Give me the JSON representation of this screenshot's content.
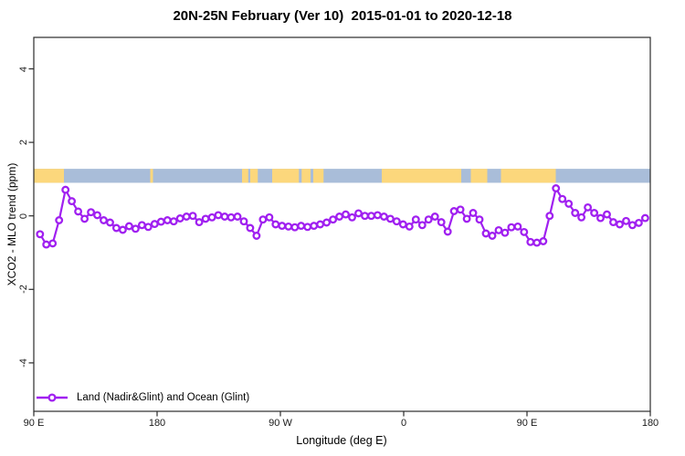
{
  "chart_data": {
    "type": "line",
    "title": "20N-25N February (Ver 10)  2015-01-01 to 2020-12-18",
    "xlabel": "Longitude (deg E)",
    "ylabel": "XCO2 - MLO trend (ppm)",
    "grid": "off",
    "x_axis": {
      "span_deg": 450,
      "note": "longitude axis runs eastward from 90E around the globe and past 90E again to 180",
      "ticks": [
        {
          "label": "90 E",
          "offset_deg": 0
        },
        {
          "label": "180",
          "offset_deg": 90
        },
        {
          "label": "90 W",
          "offset_deg": 180
        },
        {
          "label": "0",
          "offset_deg": 270
        },
        {
          "label": "90 E",
          "offset_deg": 360
        },
        {
          "label": "180",
          "offset_deg": 450
        }
      ]
    },
    "y_axis": {
      "range_ppm": [
        -5.3,
        4.9
      ],
      "ticks": [
        {
          "label": "4",
          "value": 4
        },
        {
          "label": "2",
          "value": 2
        },
        {
          "label": "0",
          "value": 0
        },
        {
          "label": "-2",
          "value": -2
        },
        {
          "label": "-4",
          "value": -4
        }
      ]
    },
    "series": [
      {
        "name": "Land (Nadir&Glint) and Ocean (Glint)",
        "color": "#A020F0",
        "marker": "open-circle",
        "x_offset_deg": [
          4.5,
          9.15,
          13.8,
          18.45,
          23.1,
          27.75,
          32.4,
          37.05,
          41.7,
          46.35,
          51.0,
          55.65,
          60.3,
          64.95,
          69.6,
          74.25,
          78.9,
          83.55,
          88.2,
          92.85,
          97.5,
          102.15,
          106.8,
          111.45,
          116.1,
          120.75,
          125.4,
          130.05,
          134.7,
          139.35,
          144.0,
          148.65,
          153.3,
          157.95,
          162.6,
          167.25,
          171.9,
          176.55,
          181.2,
          185.85,
          190.5,
          195.15,
          199.8,
          204.45,
          209.1,
          213.75,
          218.4,
          223.05,
          227.7,
          232.35,
          237.0,
          241.65,
          246.3,
          250.95,
          255.6,
          260.25,
          264.9,
          269.55,
          274.2,
          278.85,
          283.5,
          288.15,
          292.8,
          297.45,
          302.1,
          306.75,
          311.4,
          316.05,
          320.7,
          325.35,
          330.0,
          334.65,
          339.3,
          343.95,
          348.6,
          353.25,
          357.9,
          362.55,
          367.2,
          371.85,
          376.5,
          381.15,
          385.8,
          390.45,
          395.1,
          399.75,
          404.4,
          409.05,
          413.7,
          418.35,
          423.0,
          427.65,
          432.3,
          436.95,
          441.6,
          446.25
        ],
        "y_ppm": [
          -0.5,
          -0.78,
          -0.75,
          -0.12,
          0.71,
          0.4,
          0.12,
          -0.08,
          0.1,
          0.02,
          -0.12,
          -0.18,
          -0.33,
          -0.38,
          -0.28,
          -0.35,
          -0.25,
          -0.3,
          -0.22,
          -0.16,
          -0.12,
          -0.15,
          -0.07,
          -0.02,
          0,
          -0.17,
          -0.08,
          -0.04,
          0.02,
          -0.02,
          -0.04,
          -0.02,
          -0.15,
          -0.33,
          -0.54,
          -0.1,
          -0.04,
          -0.23,
          -0.27,
          -0.29,
          -0.31,
          -0.27,
          -0.3,
          -0.27,
          -0.23,
          -0.18,
          -0.1,
          -0.02,
          0.04,
          -0.04,
          0.07,
          0,
          0,
          0.02,
          -0.02,
          -0.08,
          -0.15,
          -0.23,
          -0.29,
          -0.1,
          -0.25,
          -0.1,
          -0.02,
          -0.17,
          -0.43,
          0.13,
          0.17,
          -0.08,
          0.08,
          -0.1,
          -0.48,
          -0.54,
          -0.39,
          -0.46,
          -0.31,
          -0.29,
          -0.44,
          -0.71,
          -0.73,
          -0.69,
          0,
          0.75,
          0.46,
          0.33,
          0.08,
          -0.04,
          0.23,
          0.08,
          -0.06,
          0.04,
          -0.17,
          -0.23,
          -0.14,
          -0.25,
          -0.19,
          -0.06
        ]
      }
    ],
    "map_band": {
      "description": "world-map strip for the 20N-25N latitude band drawn across the plot",
      "y_value_range_ppm": [
        0.9,
        1.28
      ],
      "ocean_color": "#A9BDD9",
      "land_color": "#FCD77C",
      "land_segments_offset_deg": [
        [
          0,
          22
        ],
        [
          85,
          87
        ],
        [
          152,
          156.5
        ],
        [
          158,
          163.5
        ],
        [
          174,
          193.5
        ],
        [
          195.5,
          202
        ],
        [
          204,
          211.5
        ],
        [
          254,
          312
        ],
        [
          319,
          331
        ],
        [
          341,
          381
        ]
      ]
    },
    "legend": {
      "label": "Land (Nadir&Glint) and Ocean (Glint)",
      "position": "bottom-left"
    }
  }
}
